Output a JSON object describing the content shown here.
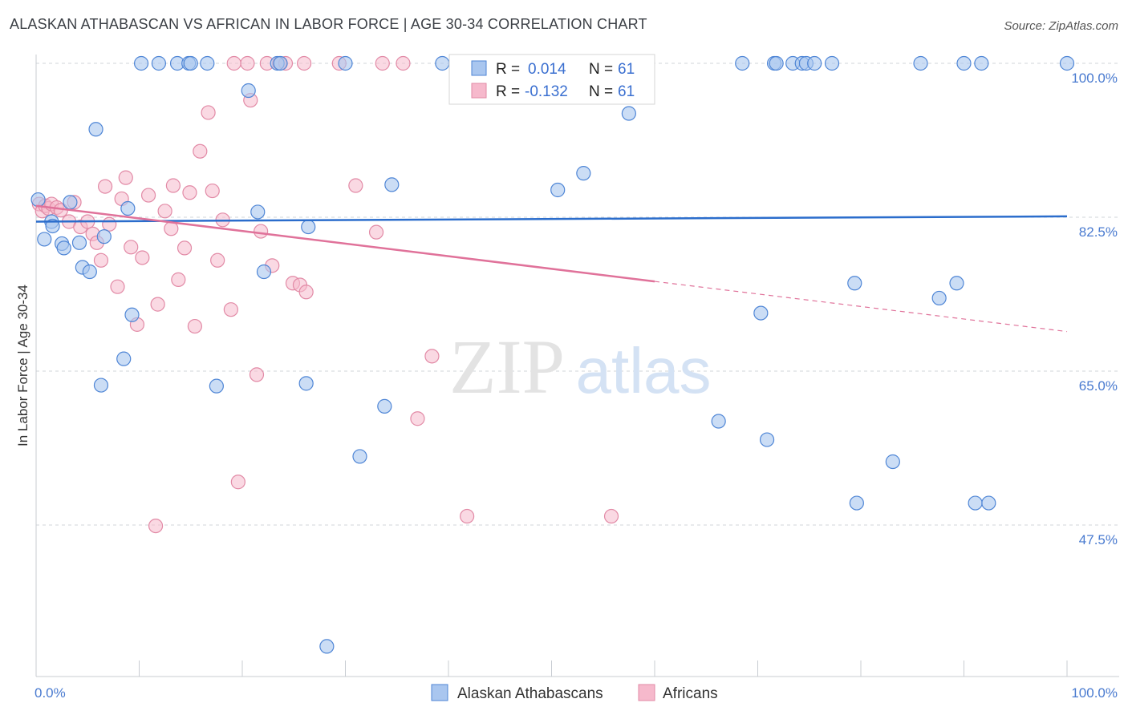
{
  "title": "ALASKAN ATHABASCAN VS AFRICAN IN LABOR FORCE | AGE 30-34 CORRELATION CHART",
  "source": "Source: ZipAtlas.com",
  "watermark": {
    "zip": "ZIP",
    "atlas": "atlas"
  },
  "legend": {
    "rows": [
      {
        "r_label": "R =",
        "r_value": "0.014",
        "n_label": "N =",
        "n_value": "61"
      },
      {
        "r_label": "R =",
        "r_value": "-0.132",
        "n_label": "N =",
        "n_value": "61"
      }
    ]
  },
  "colors": {
    "blue_fill": "#a9c6ef",
    "blue_stroke": "#4f86d6",
    "blue_line": "#2b6dcc",
    "pink_fill": "#f6b9cc",
    "pink_stroke": "#e28aa6",
    "pink_line": "#e0729a",
    "grid": "#d0d4da",
    "axis_text": "#4a7bd0"
  },
  "chart_data": {
    "type": "scatter",
    "ylabel": "In Labor Force | Age 30-34",
    "x_tick_labels": [
      "0.0%",
      "100.0%"
    ],
    "y_tick_labels": [
      "100.0%",
      "82.5%",
      "65.0%",
      "47.5%"
    ],
    "y_ticks": [
      100,
      82.5,
      65,
      47.5
    ],
    "xlim": [
      0,
      100
    ],
    "ylim": [
      30.5,
      101.5
    ],
    "grid": true,
    "legend_position": "top-center",
    "series": [
      {
        "name": "Alaskan Athabascans",
        "color": "#a9c6ef",
        "trend": {
          "x": [
            0,
            100
          ],
          "y": [
            82.0,
            82.6
          ]
        },
        "points": [
          [
            0.2,
            84.5
          ],
          [
            0.8,
            80.0
          ],
          [
            1.5,
            82.0
          ],
          [
            1.6,
            81.5
          ],
          [
            2.5,
            79.5
          ],
          [
            2.7,
            79.0
          ],
          [
            3.3,
            84.2
          ],
          [
            4.2,
            79.6
          ],
          [
            4.5,
            76.8
          ],
          [
            5.2,
            76.3
          ],
          [
            5.8,
            92.5
          ],
          [
            6.3,
            63.4
          ],
          [
            6.6,
            80.3
          ],
          [
            8.5,
            66.4
          ],
          [
            8.9,
            83.5
          ],
          [
            9.3,
            71.4
          ],
          [
            10.2,
            100
          ],
          [
            11.9,
            100
          ],
          [
            13.7,
            100
          ],
          [
            14.8,
            100
          ],
          [
            15.0,
            100
          ],
          [
            16.6,
            100
          ],
          [
            17.5,
            63.3
          ],
          [
            20.6,
            96.9
          ],
          [
            21.5,
            83.1
          ],
          [
            22.1,
            76.3
          ],
          [
            23.4,
            100
          ],
          [
            23.7,
            100
          ],
          [
            26.2,
            63.6
          ],
          [
            26.4,
            81.4
          ],
          [
            28.2,
            33.7
          ],
          [
            31.4,
            55.3
          ],
          [
            33.8,
            61.0
          ],
          [
            34.5,
            86.2
          ],
          [
            39.4,
            100
          ],
          [
            50.6,
            85.6
          ],
          [
            53.1,
            87.5
          ],
          [
            57.5,
            94.3
          ],
          [
            66.2,
            59.3
          ],
          [
            68.5,
            100
          ],
          [
            70.3,
            71.6
          ],
          [
            70.9,
            57.2
          ],
          [
            71.6,
            100
          ],
          [
            71.8,
            100
          ],
          [
            73.4,
            100
          ],
          [
            74.3,
            100
          ],
          [
            74.7,
            100
          ],
          [
            75.5,
            100
          ],
          [
            77.2,
            100
          ],
          [
            79.4,
            75.0
          ],
          [
            83.1,
            54.7
          ],
          [
            85.8,
            100
          ],
          [
            87.6,
            73.3
          ],
          [
            89.3,
            75.0
          ],
          [
            90.0,
            100
          ],
          [
            91.1,
            50.0
          ],
          [
            91.7,
            100
          ],
          [
            92.4,
            50.0
          ],
          [
            100,
            100
          ],
          [
            79.6,
            50.0
          ],
          [
            30.0,
            100
          ]
        ]
      },
      {
        "name": "Africans",
        "color": "#f6b9cc",
        "trend": {
          "x": [
            0,
            60
          ],
          "y": [
            83.8,
            75.2
          ]
        },
        "trend_dashed": {
          "x": [
            60,
            100
          ],
          "y": [
            75.2,
            69.5
          ]
        },
        "points": [
          [
            0.3,
            84.0
          ],
          [
            0.6,
            83.2
          ],
          [
            0.9,
            83.8
          ],
          [
            1.2,
            83.5
          ],
          [
            1.5,
            84.0
          ],
          [
            2.0,
            83.6
          ],
          [
            2.4,
            83.3
          ],
          [
            3.2,
            82.0
          ],
          [
            3.7,
            84.2
          ],
          [
            4.3,
            81.4
          ],
          [
            5.0,
            82.0
          ],
          [
            5.5,
            80.6
          ],
          [
            5.9,
            79.6
          ],
          [
            6.3,
            77.6
          ],
          [
            6.7,
            86.0
          ],
          [
            7.1,
            81.7
          ],
          [
            7.9,
            74.6
          ],
          [
            8.3,
            84.6
          ],
          [
            8.7,
            87.0
          ],
          [
            9.2,
            79.1
          ],
          [
            9.8,
            70.3
          ],
          [
            10.3,
            77.9
          ],
          [
            10.9,
            85.0
          ],
          [
            11.6,
            47.4
          ],
          [
            11.8,
            72.6
          ],
          [
            12.5,
            83.2
          ],
          [
            13.1,
            81.2
          ],
          [
            13.3,
            86.1
          ],
          [
            13.8,
            75.4
          ],
          [
            14.4,
            79.0
          ],
          [
            14.9,
            85.3
          ],
          [
            15.4,
            70.1
          ],
          [
            15.9,
            90.0
          ],
          [
            16.7,
            94.4
          ],
          [
            17.1,
            85.5
          ],
          [
            17.6,
            77.6
          ],
          [
            18.1,
            82.2
          ],
          [
            18.9,
            72.0
          ],
          [
            19.2,
            100
          ],
          [
            20.5,
            100
          ],
          [
            20.8,
            95.8
          ],
          [
            21.4,
            64.6
          ],
          [
            21.8,
            80.9
          ],
          [
            22.4,
            100
          ],
          [
            22.9,
            77.0
          ],
          [
            23.6,
            100
          ],
          [
            24.2,
            100
          ],
          [
            24.9,
            75.0
          ],
          [
            25.6,
            74.8
          ],
          [
            26.2,
            74.0
          ],
          [
            19.6,
            52.4
          ],
          [
            29.4,
            100
          ],
          [
            31.0,
            86.1
          ],
          [
            33.0,
            80.8
          ],
          [
            33.6,
            100
          ],
          [
            35.6,
            100
          ],
          [
            37.0,
            59.6
          ],
          [
            38.4,
            66.7
          ],
          [
            41.8,
            48.5
          ],
          [
            55.8,
            48.5
          ],
          [
            26.0,
            100
          ]
        ]
      }
    ]
  }
}
